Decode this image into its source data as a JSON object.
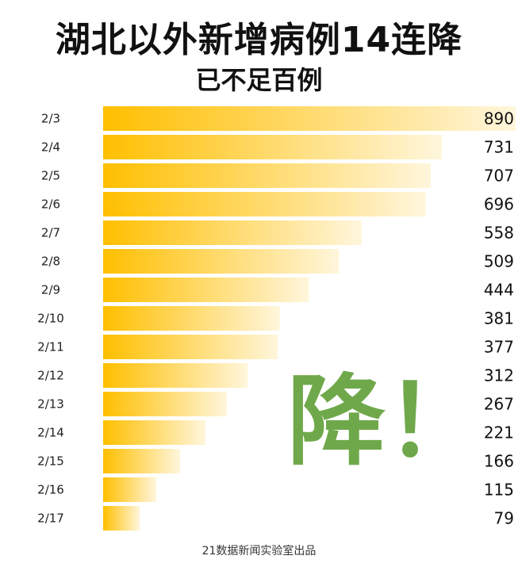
{
  "chart_data": {
    "type": "bar",
    "orientation": "horizontal",
    "title": "湖北以外新增病例14连降",
    "subtitle": "已不足百例",
    "categories": [
      "2/3",
      "2/4",
      "2/5",
      "2/6",
      "2/7",
      "2/8",
      "2/9",
      "2/10",
      "2/11",
      "2/12",
      "2/13",
      "2/14",
      "2/15",
      "2/16",
      "2/17"
    ],
    "values": [
      890,
      731,
      707,
      696,
      558,
      509,
      444,
      381,
      377,
      312,
      267,
      221,
      166,
      115,
      79
    ],
    "bar_color_start": "#ffbf00",
    "bar_color_end": "#fff6dc",
    "xlim": [
      0,
      890
    ]
  },
  "annotation": "降！",
  "annotation_color": "#6fa84a",
  "footer": "21数据新闻实验室出品"
}
